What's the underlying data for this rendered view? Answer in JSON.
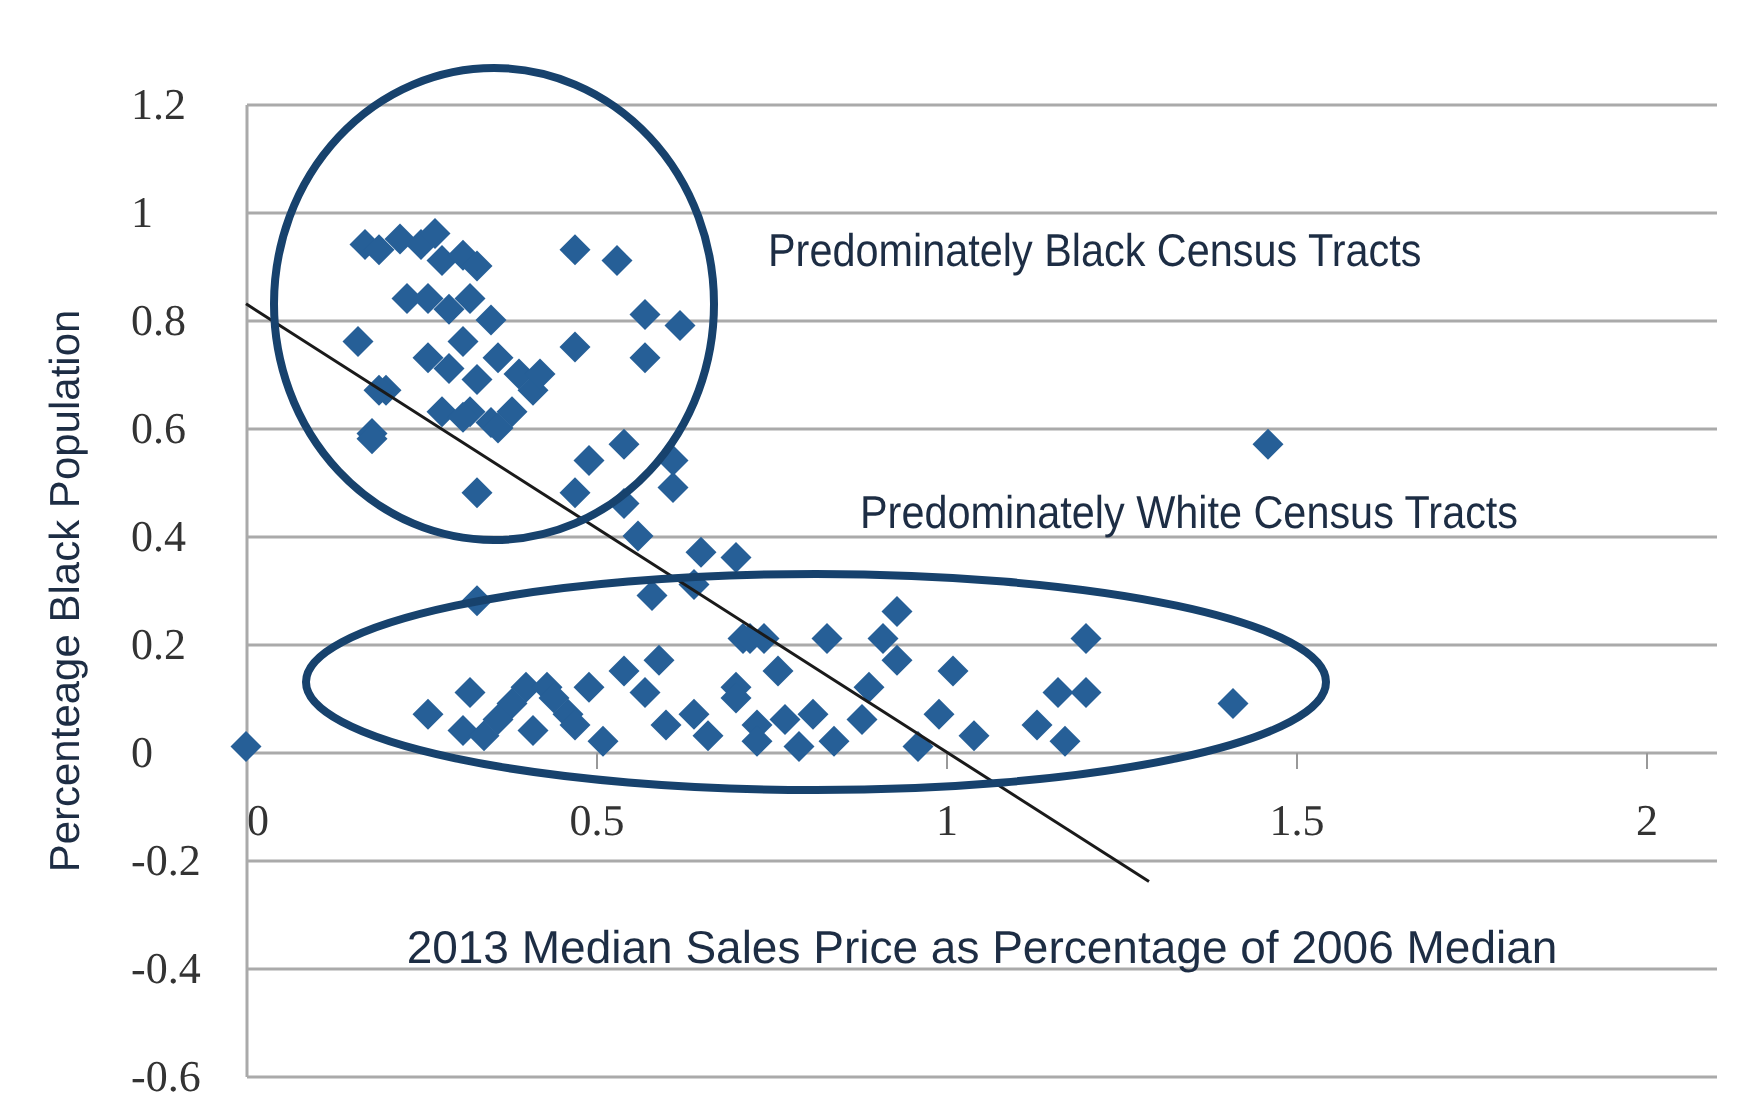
{
  "chart_data": {
    "type": "scatter",
    "xlabel": "2013 Median Sales Price as Percentage of 2006 Median",
    "ylabel": "Percenteage Black Population",
    "annotations": [
      "Predominately Black Census Tracts",
      "Predominately White Census Tracts"
    ],
    "xlim": [
      0,
      2.1
    ],
    "ylim": [
      -0.6,
      1.2
    ],
    "xticks": [
      0,
      0.5,
      1,
      1.5,
      2
    ],
    "yticks": [
      -0.6,
      -0.4,
      -0.2,
      0,
      0.2,
      0.4,
      0.6,
      0.8,
      1,
      1.2
    ],
    "grid": "y",
    "series": [
      {
        "color": "#265f97",
        "marker": "diamond",
        "x": [
          0.17,
          0.19,
          0.22,
          0.25,
          0.27,
          0.28,
          0.31,
          0.33,
          0.23,
          0.26,
          0.29,
          0.32,
          0.35,
          0.16,
          0.2,
          0.18,
          0.26,
          0.29,
          0.31,
          0.33,
          0.36,
          0.39,
          0.41,
          0.42,
          0.28,
          0.32,
          0.35,
          0.38,
          0.36,
          0.31,
          0.47,
          0.53,
          0.57,
          0.62,
          0.57,
          0.47,
          0.19,
          0.18,
          0.33,
          0.49,
          0.54,
          0.61,
          0.61,
          0.47,
          0.54,
          0.56,
          0.65,
          0.7,
          0.33,
          0.58,
          0.64,
          0.71,
          0.54,
          0.59,
          0.26,
          0.31,
          0.32,
          0.34,
          0.38,
          0.4,
          0.43,
          0.41,
          0.46,
          0.49,
          0.51,
          0.57,
          0.6,
          0.66,
          0.7,
          0.73,
          0.47,
          0.36,
          0.44,
          0.64,
          0.93,
          0.72,
          0.74,
          0.83,
          0.91,
          0.93,
          1.01,
          1.2,
          1.16,
          1.2,
          1.41,
          1.13,
          1.17,
          1.04,
          0.99,
          0.96,
          0.89,
          0.76,
          0.81,
          0.84,
          0.88,
          0.7,
          0.77,
          0.79,
          0.73,
          0,
          1.46
        ],
        "values": [
          0.94,
          0.93,
          0.95,
          0.94,
          0.96,
          0.91,
          0.92,
          0.9,
          0.84,
          0.84,
          0.82,
          0.84,
          0.8,
          0.76,
          0.67,
          0.59,
          0.73,
          0.71,
          0.76,
          0.69,
          0.73,
          0.7,
          0.67,
          0.7,
          0.63,
          0.63,
          0.61,
          0.63,
          0.6,
          0.62,
          0.93,
          0.91,
          0.81,
          0.79,
          0.73,
          0.75,
          0.67,
          0.58,
          0.48,
          0.54,
          0.57,
          0.54,
          0.49,
          0.48,
          0.46,
          0.4,
          0.37,
          0.36,
          0.28,
          0.29,
          0.31,
          0.21,
          0.15,
          0.17,
          0.07,
          0.04,
          0.11,
          0.03,
          0.09,
          0.12,
          0.12,
          0.04,
          0.07,
          0.12,
          0.02,
          0.11,
          0.05,
          0.03,
          0.12,
          0.05,
          0.05,
          0.06,
          0.1,
          0.07,
          0.26,
          0.21,
          0.21,
          0.21,
          0.21,
          0.17,
          0.15,
          0.21,
          0.11,
          0.11,
          0.09,
          0.05,
          0.02,
          0.03,
          0.07,
          0.01,
          0.12,
          0.15,
          0.07,
          0.02,
          0.06,
          0.1,
          0.06,
          0.01,
          0.02,
          0.01,
          0.57
        ]
      },
      {
        "type": "line",
        "color": "#1a1a1a",
        "x": [
          0,
          1.29
        ],
        "values": [
          0.83,
          -0.24
        ]
      }
    ]
  }
}
